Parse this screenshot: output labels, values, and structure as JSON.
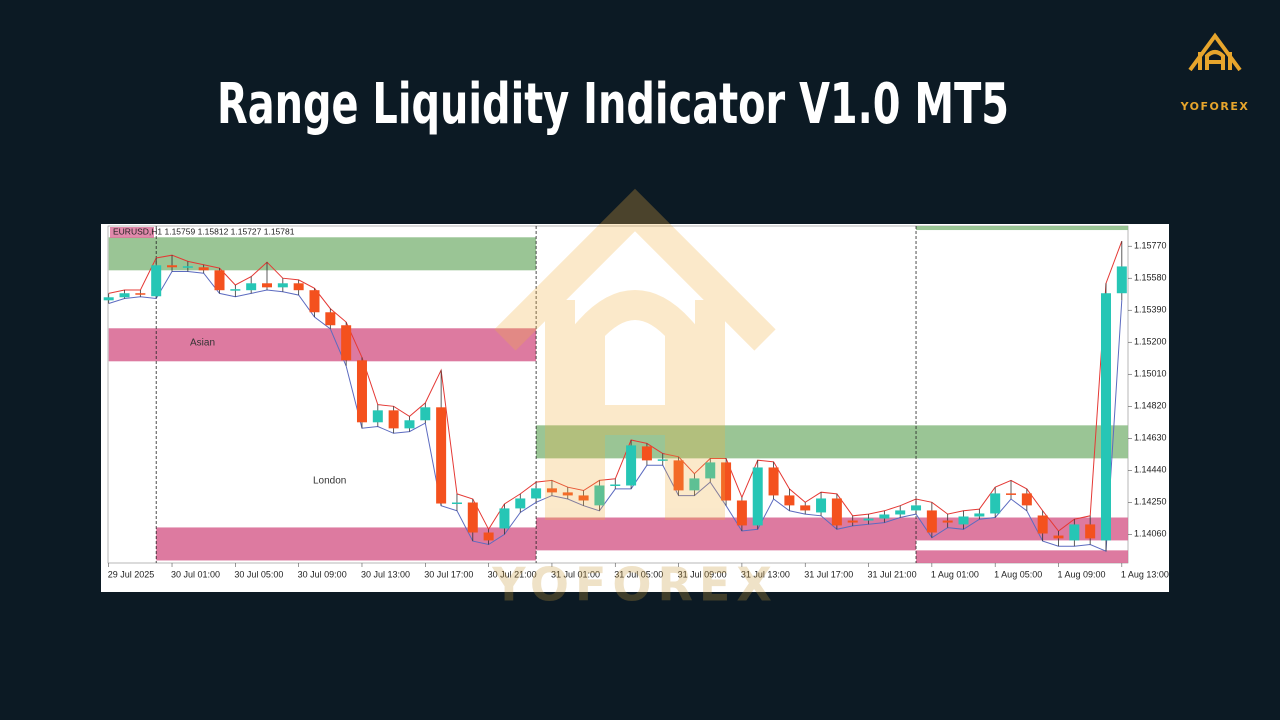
{
  "header": {
    "title": "Range Liquidity Indicator V1.0 MT5",
    "brand": "YOFOREX"
  },
  "chart_data": {
    "type": "candlestick",
    "symbol_line": "EURUSD,H1  1.15759 1.15812 1.15727 1.15781",
    "categories": [
      "29 Jul 2025",
      null,
      null,
      null,
      "30 Jul 01:00",
      null,
      null,
      null,
      "30 Jul 05:00",
      null,
      null,
      null,
      "30 Jul 09:00",
      null,
      null,
      null,
      "30 Jul 13:00",
      null,
      null,
      null,
      "30 Jul 17:00",
      null,
      null,
      null,
      "30 Jul 21:00",
      null,
      null,
      null,
      "31 Jul 01:00",
      null,
      null,
      null,
      "31 Jul 05:00",
      null,
      null,
      null,
      "31 Jul 09:00",
      null,
      null,
      null,
      "31 Jul 13:00",
      null,
      null,
      null,
      "31 Jul 17:00",
      null,
      null,
      null,
      "31 Jul 21:00",
      null,
      null,
      null,
      "1 Aug 01:00",
      null,
      null,
      null,
      "1 Aug 05:00",
      null,
      null,
      null,
      "1 Aug 09:00",
      null,
      null,
      null,
      "1 Aug 13:00"
    ],
    "open": [
      1.15449,
      1.15467,
      1.15491,
      1.15473,
      1.15657,
      1.15645,
      1.15645,
      1.15627,
      1.15509,
      1.15509,
      1.1555,
      1.15526,
      1.1555,
      1.15509,
      1.15378,
      1.15301,
      1.15093,
      1.14725,
      1.14796,
      1.14689,
      1.14737,
      1.14814,
      1.14243,
      1.14249,
      1.14071,
      1.14095,
      1.14214,
      1.14273,
      1.14333,
      1.14309,
      1.14291,
      1.14232,
      1.1435,
      1.1435,
      1.14582,
      1.14499,
      1.14499,
      1.14321,
      1.14392,
      1.14487,
      1.14261,
      1.14113,
      1.14457,
      1.14291,
      1.14232,
      1.1419,
      1.14273,
      1.14142,
      1.14142,
      1.14154,
      1.14178,
      1.14202,
      1.14202,
      1.14142,
      1.14119,
      1.14166,
      1.14184,
      1.14303,
      1.14303,
      1.14172,
      1.14053,
      1.14024,
      1.14119,
      1.14024,
      1.15491
    ],
    "high": [
      1.1549,
      1.1551,
      1.1551,
      1.157,
      1.15717,
      1.1568,
      1.1566,
      1.1564,
      1.1554,
      1.1559,
      1.15675,
      1.1558,
      1.1557,
      1.1552,
      1.154,
      1.1532,
      1.1511,
      1.1483,
      1.1482,
      1.1476,
      1.1484,
      1.15034,
      1.143,
      1.1427,
      1.1409,
      1.1424,
      1.143,
      1.1437,
      1.1438,
      1.1434,
      1.1432,
      1.1438,
      1.1439,
      1.1462,
      1.146,
      1.1454,
      1.1452,
      1.1442,
      1.1451,
      1.1451,
      1.1428,
      1.145,
      1.1449,
      1.1433,
      1.1425,
      1.1431,
      1.143,
      1.1417,
      1.1418,
      1.142,
      1.1423,
      1.1427,
      1.1425,
      1.1418,
      1.142,
      1.1421,
      1.1434,
      1.1438,
      1.1433,
      1.142,
      1.1408,
      1.1415,
      1.1417,
      1.1555,
      1.158
    ],
    "low": [
      1.1543,
      1.1546,
      1.1547,
      1.1546,
      1.1562,
      1.1562,
      1.1561,
      1.1549,
      1.1547,
      1.1549,
      1.1551,
      1.155,
      1.1548,
      1.1535,
      1.1528,
      1.1506,
      1.1469,
      1.147,
      1.1466,
      1.1467,
      1.1472,
      1.1423,
      1.142,
      1.1402,
      1.14,
      1.1406,
      1.1419,
      1.1425,
      1.1429,
      1.1427,
      1.1423,
      1.142,
      1.1433,
      1.1433,
      1.1447,
      1.1447,
      1.1429,
      1.1429,
      1.1437,
      1.1423,
      1.1408,
      1.1409,
      1.1427,
      1.142,
      1.1418,
      1.1417,
      1.1409,
      1.1411,
      1.1412,
      1.1413,
      1.1416,
      1.1418,
      1.1404,
      1.141,
      1.1409,
      1.1415,
      1.1416,
      1.1427,
      1.142,
      1.1402,
      1.1399,
      1.1399,
      1.14,
      1.1396,
      1.1545
    ],
    "close": [
      1.15467,
      1.15491,
      1.15485,
      1.15657,
      1.15645,
      1.15651,
      1.15627,
      1.15509,
      1.15515,
      1.1555,
      1.15526,
      1.1555,
      1.15509,
      1.15378,
      1.15301,
      1.15093,
      1.14725,
      1.14796,
      1.14689,
      1.14737,
      1.14814,
      1.14243,
      1.14249,
      1.14071,
      1.14024,
      1.14214,
      1.14273,
      1.14333,
      1.14309,
      1.14291,
      1.14261,
      1.1435,
      1.14356,
      1.14588,
      1.14499,
      1.14505,
      1.14321,
      1.14392,
      1.14487,
      1.14261,
      1.14113,
      1.14457,
      1.14291,
      1.14232,
      1.14202,
      1.14273,
      1.14113,
      1.1413,
      1.14154,
      1.14178,
      1.14202,
      1.14232,
      1.14071,
      1.1413,
      1.14166,
      1.14184,
      1.14303,
      1.14297,
      1.14232,
      1.14065,
      1.14036,
      1.14119,
      1.14036,
      1.15491,
      1.1565
    ],
    "bull_color": "#26c6b5",
    "bear_color": "#f4511e",
    "high_line_color": "#e53935",
    "low_line_color": "#5c6bc0",
    "zones": [
      {
        "from": 0,
        "to": 27,
        "top": 1.15823,
        "bottom": 1.15627,
        "color": "#8fbf8a"
      },
      {
        "from": 0,
        "to": 27,
        "top": 1.15283,
        "bottom": 1.15087,
        "color": "#d96b96"
      },
      {
        "from": 3,
        "to": 27,
        "top": 1.14101,
        "bottom": 1.13905,
        "color": "#d96b96"
      },
      {
        "from": 27,
        "to": 64.5,
        "top": 1.14707,
        "bottom": 1.14511,
        "color": "#8fbf8a"
      },
      {
        "from": 27,
        "to": 51,
        "top": 1.1416,
        "bottom": 1.13965,
        "color": "#d96b96"
      },
      {
        "from": 51,
        "to": 64.5,
        "top": 1.1416,
        "bottom": 1.14024,
        "color": "#d96b96"
      },
      {
        "from": 51,
        "to": 64.5,
        "top": 1.13965,
        "bottom": 1.1389,
        "color": "#d96b96"
      },
      {
        "from": 51,
        "to": 64.5,
        "top": 1.1589,
        "bottom": 1.15866,
        "color": "#8fbf8a"
      }
    ],
    "separators": [
      3,
      27,
      51
    ],
    "annotations": [
      "Asian",
      "London"
    ],
    "ylim": [
      1.1389,
      1.1589
    ],
    "yticks": [
      {
        "value": 1.1577,
        "label": "1.15770"
      },
      {
        "value": 1.1558,
        "label": "1.15580"
      },
      {
        "value": 1.1539,
        "label": "1.15390"
      },
      {
        "value": 1.152,
        "label": "1.15200"
      },
      {
        "value": 1.1501,
        "label": "1.15010"
      },
      {
        "value": 1.1482,
        "label": "1.14820"
      },
      {
        "value": 1.1463,
        "label": "1.14630"
      },
      {
        "value": 1.1444,
        "label": "1.14440"
      },
      {
        "value": 1.1425,
        "label": "1.14250"
      },
      {
        "value": 1.1406,
        "label": "1.14060"
      }
    ]
  }
}
